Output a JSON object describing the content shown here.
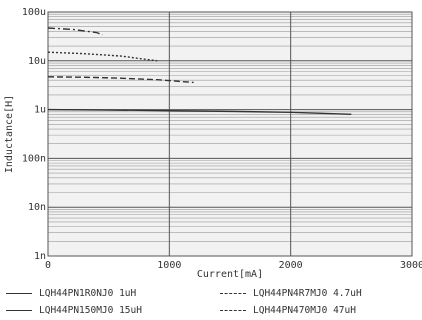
{
  "chart_data": {
    "type": "line",
    "xlabel": "Current[mA]",
    "ylabel": "Inductance[H]",
    "xlim": [
      0,
      3000
    ],
    "ylim": [
      1e-09,
      0.0001
    ],
    "yscale": "log",
    "x_ticks": [
      "0",
      "1000",
      "2000",
      "3000"
    ],
    "y_ticks": [
      "1n",
      "10n",
      "100n",
      "1u",
      "10u",
      "100u"
    ],
    "grid": true,
    "legend_position": "bottom",
    "series": [
      {
        "name": "LQH44PN1R0NJ0 1uH",
        "style": "solid",
        "color": "#333333",
        "x": [
          0,
          500,
          1000,
          1500,
          2000,
          2500
        ],
        "y": [
          1e-06,
          9.8e-07,
          9.5e-07,
          9.2e-07,
          8.8e-07,
          8e-07
        ]
      },
      {
        "name": "LQH44PN4R7MJ0 4.7uH",
        "style": "dashed",
        "color": "#333333",
        "x": [
          0,
          300,
          600,
          900,
          1200
        ],
        "y": [
          4.7e-06,
          4.6e-06,
          4.4e-06,
          4.1e-06,
          3.6e-06
        ]
      },
      {
        "name": "LQH44PN150MJ0 15uH",
        "style": "dotted",
        "color": "#333333",
        "x": [
          0,
          300,
          600,
          900
        ],
        "y": [
          1.5e-05,
          1.4e-05,
          1.25e-05,
          1e-05
        ]
      },
      {
        "name": "LQH44PN470MJ0 47uH",
        "style": "dashdot",
        "color": "#333333",
        "x": [
          0,
          200,
          400,
          450
        ],
        "y": [
          4.7e-05,
          4.4e-05,
          3.8e-05,
          3.4e-05
        ]
      }
    ]
  }
}
